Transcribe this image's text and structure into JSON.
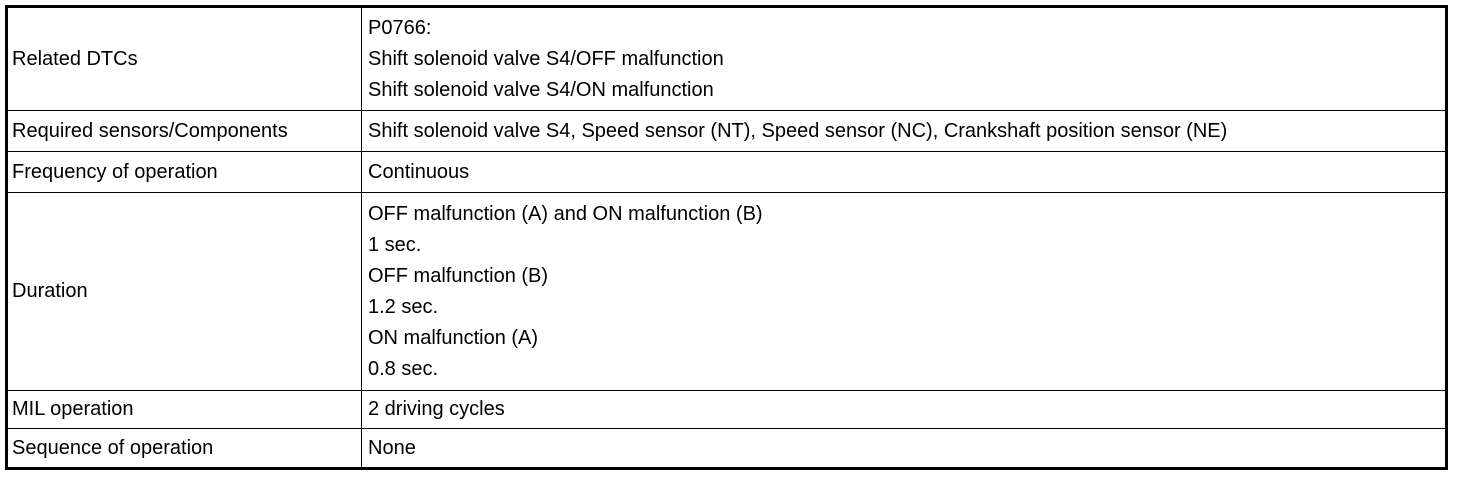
{
  "rows": [
    {
      "label": "Related DTCs",
      "lines": [
        "P0766:",
        "Shift solenoid valve S4/OFF malfunction",
        "Shift solenoid valve S4/ON malfunction"
      ]
    },
    {
      "label": "Required sensors/Components",
      "lines": [
        "Shift solenoid valve S4, Speed sensor (NT), Speed sensor (NC), Crankshaft position sensor (NE)"
      ]
    },
    {
      "label": "Frequency of operation",
      "lines": [
        "Continuous"
      ]
    },
    {
      "label": "Duration",
      "lines": [
        "OFF malfunction (A) and ON malfunction (B)",
        "1 sec.",
        "OFF malfunction (B)",
        "1.2 sec.",
        "ON malfunction (A)",
        "0.8 sec."
      ]
    },
    {
      "label": "MIL operation",
      "lines": [
        "2 driving cycles"
      ]
    },
    {
      "label": "Sequence of operation",
      "lines": [
        "None"
      ]
    }
  ]
}
